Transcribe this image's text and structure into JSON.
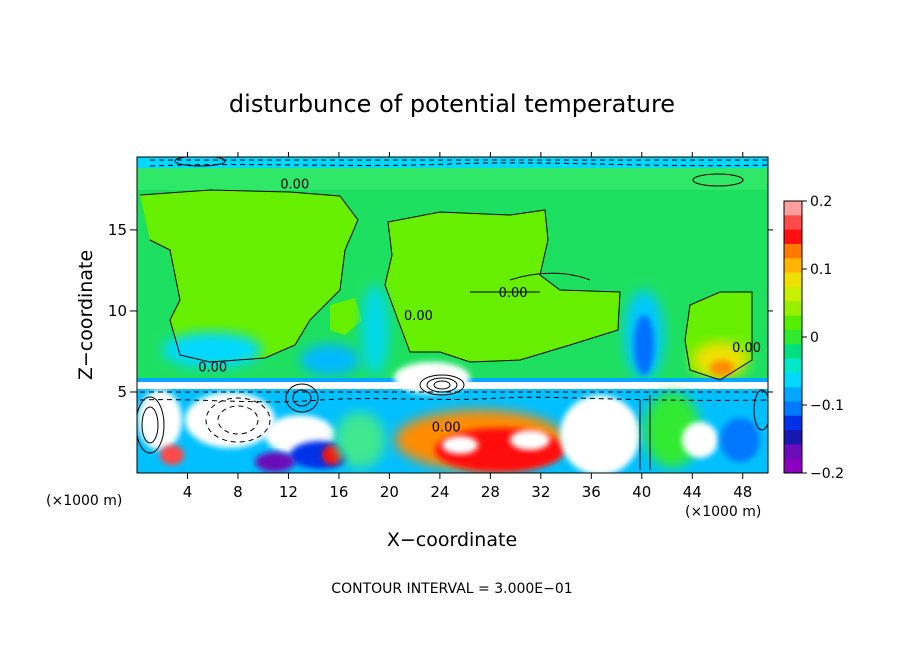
{
  "chart_data": {
    "type": "heatmap",
    "title": "disturbunce of potential temperature",
    "xlabel": "X−coordinate",
    "ylabel": "Z−coordinate",
    "x_unit_label_left": "(×1000 m)",
    "x_unit_label_right": "(×1000 m)",
    "xlim": [
      0,
      50
    ],
    "ylim": [
      0,
      19.5
    ],
    "x_ticks": [
      4,
      8,
      12,
      16,
      20,
      24,
      28,
      32,
      36,
      40,
      44,
      48
    ],
    "x_tick_labels": [
      "4",
      "8",
      "12",
      "16",
      "20",
      "24",
      "28",
      "32",
      "36",
      "40",
      "44",
      "48"
    ],
    "y_ticks": [
      5,
      10,
      15
    ],
    "y_tick_labels": [
      "5",
      "10",
      "15"
    ],
    "colorbar": {
      "min": -0.2,
      "max": 0.2,
      "tick_values": [
        0.2,
        0.1,
        0,
        -0.1,
        -0.2
      ],
      "tick_labels": [
        "0.2",
        "0.1",
        "0",
        "−0.1",
        "−0.2"
      ],
      "colors": [
        "#ffa0a0",
        "#ff4a4a",
        "#ff1010",
        "#ff7800",
        "#ffb400",
        "#f0e000",
        "#c8f000",
        "#96f000",
        "#55f000",
        "#30ea30",
        "#00e080",
        "#00e8c8",
        "#00d8ff",
        "#00a8ff",
        "#0078ff",
        "#0030e8",
        "#1818b0",
        "#6a0cb8",
        "#8c00c0"
      ]
    },
    "contour_labels": [
      {
        "text": "0.00",
        "x": 12.5,
        "z": 17.8
      },
      {
        "text": "0.00",
        "x": 29.8,
        "z": 11.1
      },
      {
        "text": "0.00",
        "x": 22.3,
        "z": 9.7
      },
      {
        "text": "0.00",
        "x": 6.0,
        "z": 6.5
      },
      {
        "text": "0.00",
        "x": 48.3,
        "z": 7.7
      },
      {
        "text": "0.00",
        "x": 24.5,
        "z": 2.8
      }
    ],
    "footer": "CONTOUR INTERVAL = 3.000E−01"
  }
}
